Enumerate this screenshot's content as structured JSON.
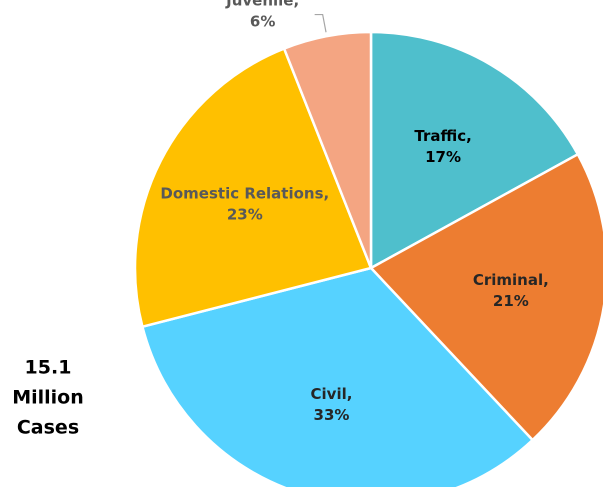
{
  "chart_data": {
    "type": "pie",
    "categories": [
      "Traffic,",
      "Criminal,",
      "Civil,",
      "Domestic Relations,",
      "Juvenile,"
    ],
    "values": [
      17,
      21,
      33,
      23,
      6
    ],
    "value_labels": [
      "17%",
      "21%",
      "33%",
      "23%",
      "6%"
    ],
    "colors": [
      "#4fbfcc",
      "#ed7d31",
      "#56d2ff",
      "#ffc000",
      "#f4a582"
    ],
    "label_colors": [
      "#000000",
      "#262626",
      "#262626",
      "#595959",
      "#595959"
    ],
    "total_label": [
      "15.1",
      "Million",
      "Cases"
    ]
  }
}
